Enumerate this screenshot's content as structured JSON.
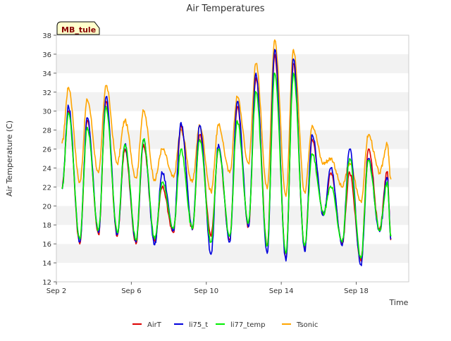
{
  "chart_data": {
    "type": "line",
    "title": "Air Temperatures",
    "xlabel": "Time",
    "ylabel": "Air Temperature (C)",
    "site_badge": "MB_tule",
    "ylim": [
      12,
      38
    ],
    "xlim": [
      2.0,
      20.8
    ],
    "y_ticks": [
      12,
      14,
      16,
      18,
      20,
      22,
      24,
      26,
      28,
      30,
      32,
      34,
      36,
      38
    ],
    "x_ticks": [
      {
        "value": 2,
        "label": "Sep 2"
      },
      {
        "value": 6,
        "label": "Sep 6"
      },
      {
        "value": 10,
        "label": "Sep 10"
      },
      {
        "value": 14,
        "label": "Sep 14"
      },
      {
        "value": 18,
        "label": "Sep 18"
      }
    ],
    "grid": "horizontal alternating bands",
    "legend_position": "bottom",
    "x_unit": "day of September",
    "daily_extremes": {
      "days": [
        2,
        3,
        4,
        5,
        6,
        7,
        8,
        9,
        10,
        11,
        12,
        13,
        14,
        15,
        16,
        17,
        18,
        19
      ],
      "min_time": [
        3.25,
        4.25,
        5.25,
        6.25,
        7.25,
        8.25,
        9.25,
        10.25,
        11.25,
        12.25,
        13.25,
        14.25,
        15.25,
        16.25,
        17.25,
        18.25,
        19.25
      ],
      "max_time": [
        2.65,
        3.65,
        4.65,
        5.65,
        6.65,
        7.65,
        8.65,
        9.65,
        10.65,
        11.65,
        12.65,
        13.65,
        14.65,
        15.65,
        16.65,
        17.65,
        18.65,
        19.65
      ],
      "start_value": {
        "AirT": 22.0,
        "li75_t": 21.8,
        "li77_temp": 21.8,
        "Tsonic": 26.6
      },
      "end_time": 19.85,
      "end_value": {
        "AirT": 16.6,
        "li75_t": 16.5,
        "li77_temp": 16.8,
        "Tsonic": 22.8
      }
    },
    "series": [
      {
        "name": "AirT",
        "color": "#dd0000",
        "max": [
          30.0,
          29.0,
          31.0,
          26.0,
          26.5,
          22.0,
          28.5,
          27.5,
          26.0,
          30.5,
          33.5,
          36.0,
          35.0,
          27.0,
          23.5,
          23.5,
          26.0,
          23.5
        ],
        "min": [
          16.0,
          17.0,
          16.8,
          16.0,
          16.3,
          17.2,
          17.5,
          16.8,
          16.5,
          17.8,
          15.8,
          14.5,
          15.5,
          19.0,
          16.0,
          14.2,
          17.5
        ]
      },
      {
        "name": "li75_t",
        "color": "#0000dd",
        "max": [
          30.5,
          29.3,
          31.5,
          26.5,
          27.0,
          23.5,
          28.8,
          28.5,
          26.5,
          31.0,
          34.0,
          36.5,
          35.5,
          27.5,
          24.0,
          26.0,
          25.0,
          23.0
        ],
        "min": [
          16.2,
          17.2,
          17.0,
          16.2,
          15.9,
          17.5,
          17.5,
          14.9,
          16.2,
          17.8,
          15.0,
          14.2,
          15.2,
          19.0,
          15.8,
          13.8,
          17.3
        ]
      },
      {
        "name": "li77_temp",
        "color": "#00ee00",
        "max": [
          29.8,
          28.3,
          30.5,
          26.5,
          27.0,
          22.5,
          26.0,
          27.0,
          26.0,
          29.0,
          32.0,
          34.0,
          34.0,
          25.5,
          22.0,
          25.0,
          24.8,
          22.5
        ],
        "min": [
          16.5,
          17.5,
          17.2,
          16.5,
          16.5,
          17.6,
          17.6,
          16.2,
          16.8,
          18.2,
          15.8,
          15.0,
          15.8,
          19.2,
          16.2,
          14.5,
          17.5
        ]
      },
      {
        "name": "Tsonic",
        "color": "#ffa500",
        "max": [
          32.5,
          31.2,
          32.7,
          29.0,
          30.0,
          26.0,
          28.0,
          28.5,
          28.5,
          31.5,
          35.0,
          37.5,
          36.5,
          28.5,
          25.0,
          24.5,
          27.5,
          26.5
        ],
        "min": [
          22.5,
          23.5,
          24.5,
          23.0,
          22.8,
          23.0,
          22.5,
          21.5,
          23.5,
          24.5,
          21.8,
          21.0,
          21.5,
          24.5,
          22.0,
          20.5,
          23.5
        ]
      }
    ]
  }
}
